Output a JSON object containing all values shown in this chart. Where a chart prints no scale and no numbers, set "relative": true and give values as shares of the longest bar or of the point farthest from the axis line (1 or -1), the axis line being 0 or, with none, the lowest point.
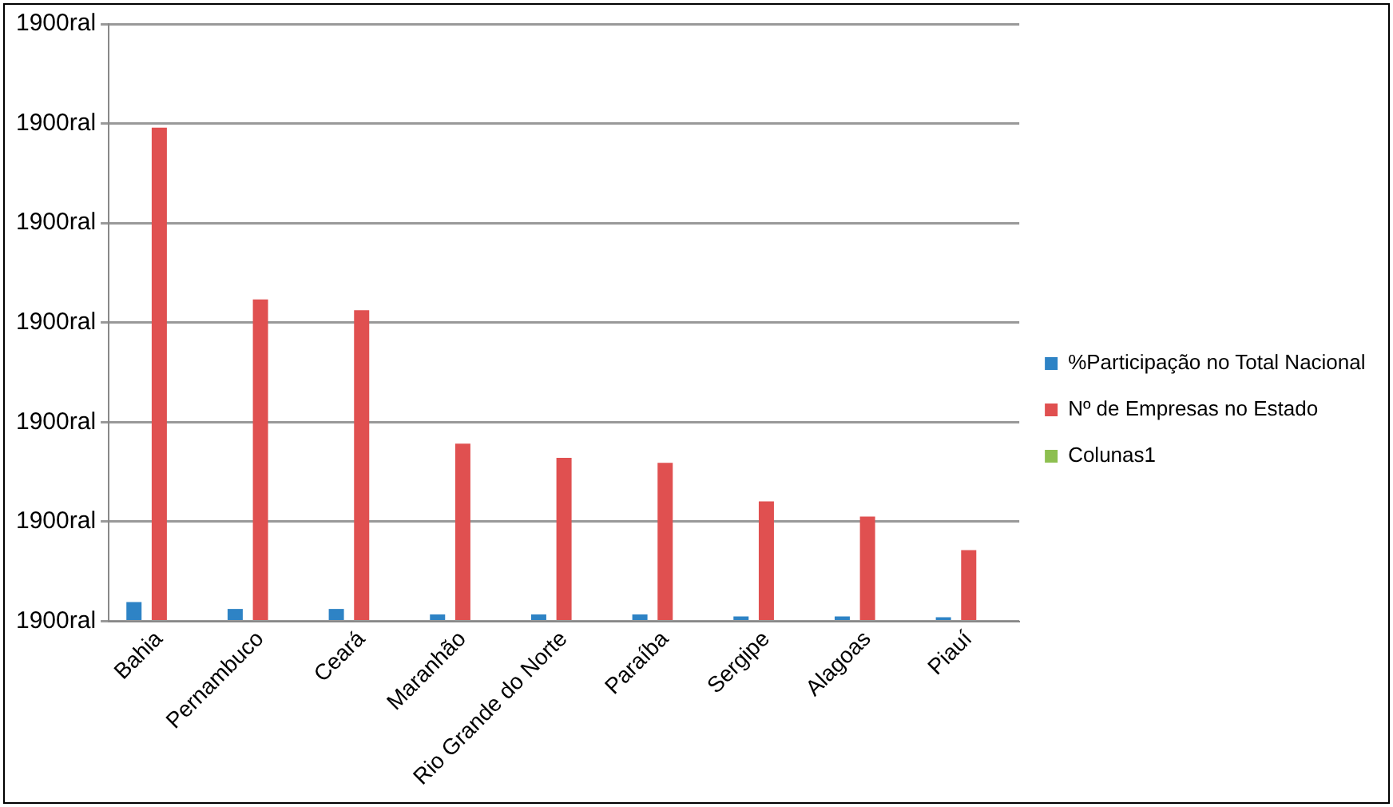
{
  "chart_data": {
    "type": "bar",
    "relative": true,
    "categories": [
      "Bahia",
      "Pernambuco",
      "Ceará",
      "Maranhão",
      "Rio Grande do Norte",
      "Paraíba",
      "Sergipe",
      "Alagoas",
      "Piauí"
    ],
    "series": [
      {
        "name": "%Participação no Total Nacional",
        "color": "#2e83c5",
        "values": [
          0.039,
          0.025,
          0.025,
          0.014,
          0.014,
          0.014,
          0.01,
          0.01,
          0.008
        ]
      },
      {
        "name": "Nº de Empresas no Estado",
        "color": "#e05050",
        "values": [
          1,
          0.652,
          0.63,
          0.36,
          0.331,
          0.321,
          0.243,
          0.212,
          0.144
        ]
      },
      {
        "name": "Colunas1",
        "color": "#8dbf50",
        "values": [
          null,
          null,
          null,
          null,
          null,
          null,
          null,
          null,
          null
        ]
      }
    ],
    "annotations": [
      "1900ral",
      "1900ral",
      "1900ral",
      "1900ral",
      "1900ral",
      "1900ral",
      "1900ral"
    ],
    "grid": "y",
    "legend": "right"
  }
}
